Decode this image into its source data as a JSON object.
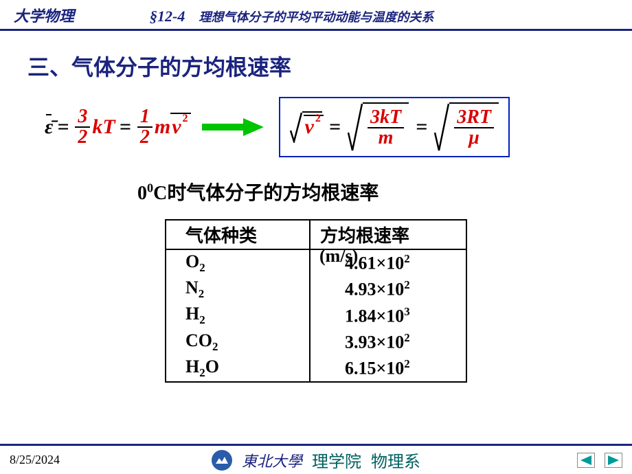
{
  "colors": {
    "header_rule": "#1a237e",
    "header_text": "#1a237e",
    "section_title": "#1a237e",
    "equation_main": "#d80000",
    "equation_black": "#000000",
    "arrow_fill": "#00c400",
    "box_border": "#0020c0",
    "box_text": "#d80000",
    "footer_blue": "#1a237e",
    "footer_green": "#006060",
    "nav_fill": "#009999",
    "logo_bg": "#2a5caa"
  },
  "header": {
    "course": "大学物理",
    "section": "§12-4",
    "title": "理想气体分子的平均平动动能与温度的关系"
  },
  "section_title": "三、气体分子的方均根速率",
  "equation_left": {
    "lhs": "ε̄",
    "eq": "=",
    "frac1_num": "3",
    "frac1_den": "2",
    "kT": "kT",
    "frac2_num": "1",
    "frac2_den": "2",
    "m": "m",
    "v2": "v",
    "exp": "2"
  },
  "equation_right": {
    "sqrt_v2": "v",
    "sqrt_exp": "2",
    "eq": "=",
    "frac1_num": "3kT",
    "frac1_den": "m",
    "frac2_num": "3RT",
    "frac2_den": "μ"
  },
  "sub_caption_prefix": "0",
  "sub_caption_sup": "0",
  "sub_caption_rest": "C时气体分子的方均根速率",
  "table": {
    "col1_header": "气体种类",
    "col2_header": "方均根速率",
    "unit": "(m/s)",
    "rows": [
      {
        "gas_base": "O",
        "gas_sub": "2",
        "val_mant": "4.61×10",
        "val_exp": "2"
      },
      {
        "gas_base": "N",
        "gas_sub": "2",
        "val_mant": "4.93×10",
        "val_exp": "2"
      },
      {
        "gas_base": "H",
        "gas_sub": "2",
        "val_mant": "1.84×10",
        "val_exp": "3"
      },
      {
        "gas_base": "CO",
        "gas_sub": "2",
        "val_mant": "3.93×10",
        "val_exp": "2"
      },
      {
        "gas_base": "H",
        "gas_sub": "2",
        "gas_suffix": "O",
        "val_mant": "6.15×10",
        "val_exp": "2"
      }
    ]
  },
  "footer": {
    "date": "8/25/2024",
    "university": "東北大學",
    "dept1": "理学院",
    "dept2": "物理系"
  }
}
